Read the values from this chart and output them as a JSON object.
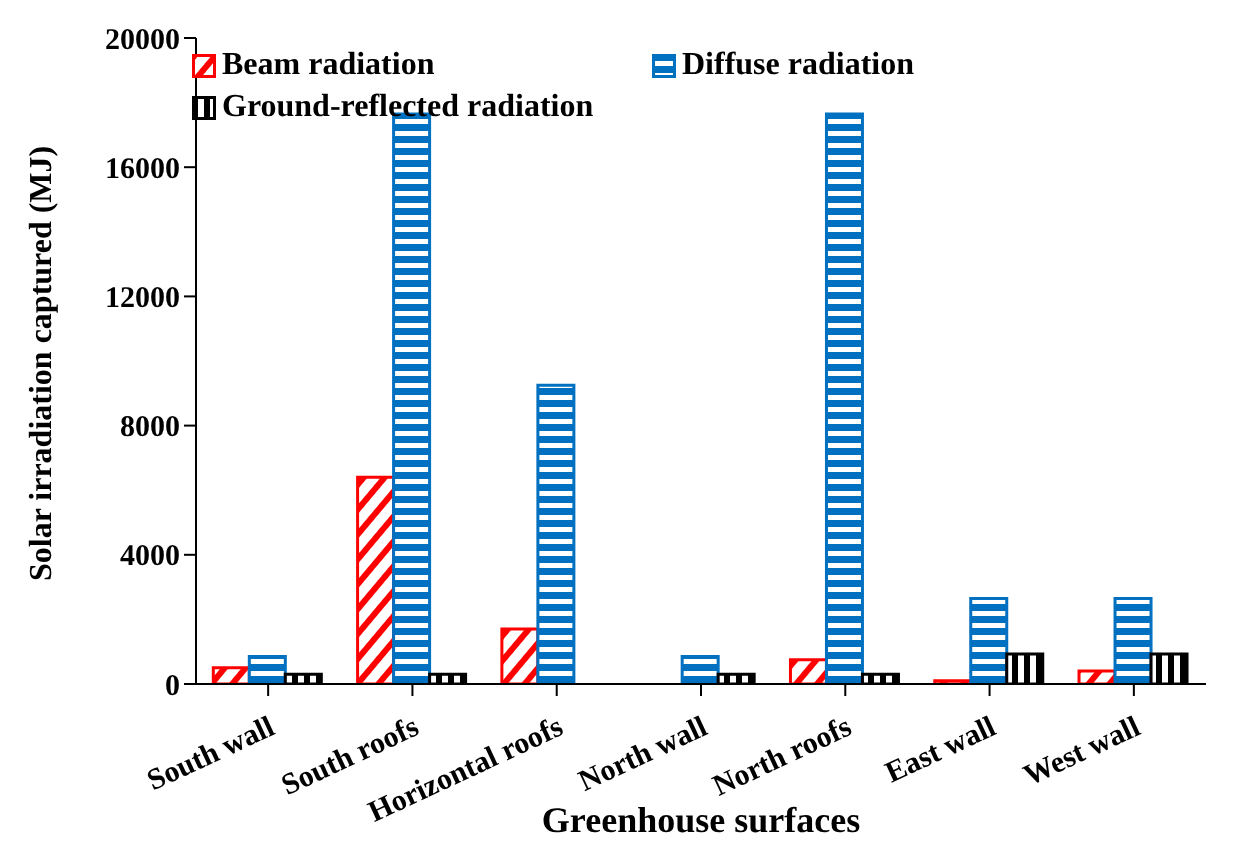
{
  "chart_data": {
    "type": "bar",
    "xlabel": "Greenhouse surfaces",
    "ylabel": "Solar irradiation captured (MJ)",
    "categories": [
      "South wall",
      "South roofs",
      "Horizontal roofs",
      "North wall",
      "North roofs",
      "East wall",
      "West wall"
    ],
    "series": [
      {
        "name": "Beam radiation",
        "color": "#ff0000",
        "values": [
          500,
          6400,
          1700,
          0,
          750,
          100,
          400
        ]
      },
      {
        "name": "Diffuse radiation",
        "color": "#0070c0",
        "values": [
          850,
          17650,
          9250,
          850,
          17650,
          2650,
          2650
        ]
      },
      {
        "name": "Ground-reflected radiation",
        "color": "#000000",
        "values": [
          300,
          300,
          0,
          300,
          300,
          930,
          930
        ]
      }
    ],
    "ylim": [
      0,
      20000
    ],
    "yticks": [
      0,
      4000,
      8000,
      12000,
      16000,
      20000
    ],
    "grid": false,
    "legend": "top left"
  }
}
